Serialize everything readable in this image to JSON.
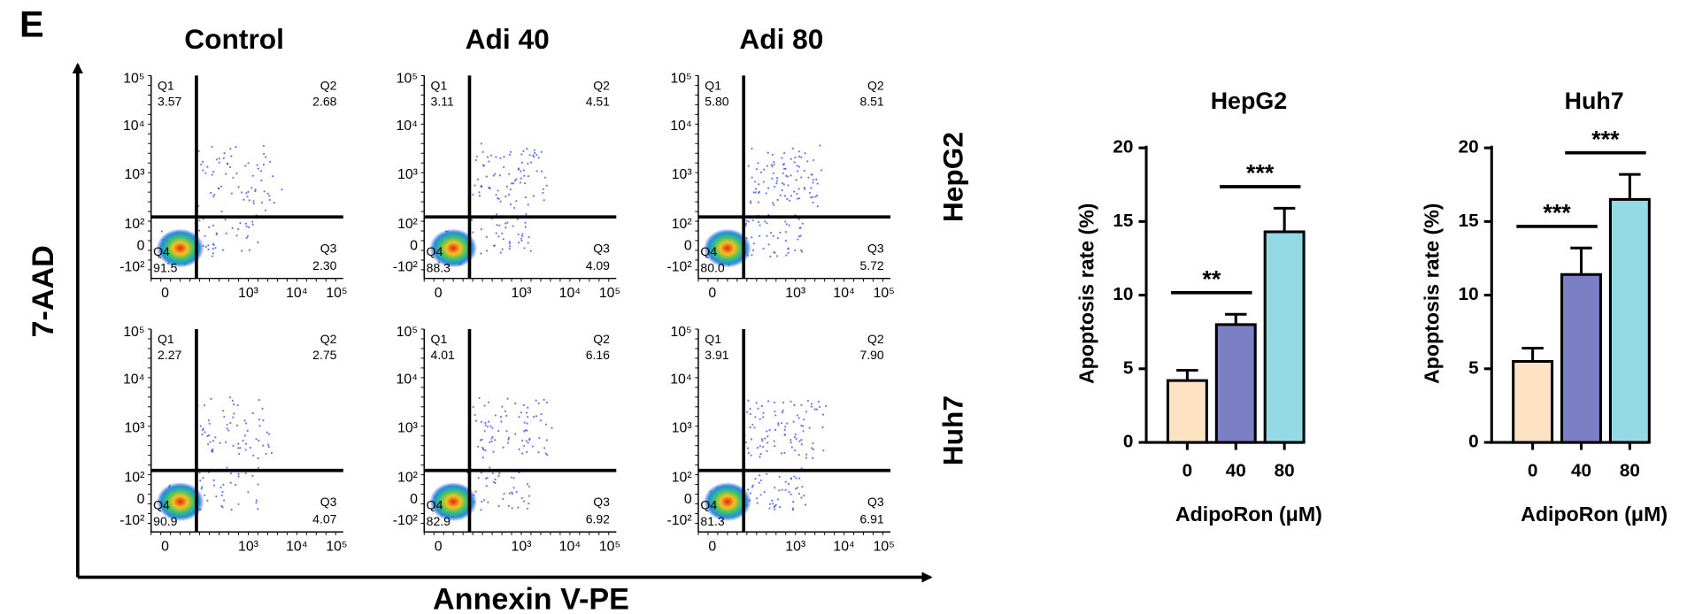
{
  "panel_label": "E",
  "flow": {
    "columns": [
      "Control",
      "Adi 40",
      "Adi 80"
    ],
    "rows": [
      "HepG2",
      "Huh7"
    ],
    "y_label": "7-AAD",
    "x_label": "Annexin V-PE",
    "quadrant_labels": [
      "Q1",
      "Q2",
      "Q3",
      "Q4"
    ],
    "y_ticks": [
      "10⁵",
      "10⁴",
      "10³",
      "10²",
      "0",
      "-10²"
    ],
    "x_ticks": [
      "0",
      "10³",
      "10⁴",
      "10⁵"
    ],
    "plots": [
      [
        [
          "3.57",
          "2.68",
          "2.30",
          "91.5"
        ],
        [
          "3.11",
          "4.51",
          "4.09",
          "88.3"
        ],
        [
          "5.80",
          "8.51",
          "5.72",
          "80.0"
        ]
      ],
      [
        [
          "2.27",
          "2.75",
          "4.07",
          "90.9"
        ],
        [
          "4.01",
          "6.16",
          "6.92",
          "82.9"
        ],
        [
          "3.91",
          "7.90",
          "6.91",
          "81.3"
        ]
      ]
    ]
  },
  "chart_data": [
    {
      "type": "bar",
      "title": "HepG2",
      "x_label": "AdipoRon (μM)",
      "y_label": "Apoptosis rate (%)",
      "categories": [
        "0",
        "40",
        "80"
      ],
      "values": [
        4.2,
        8.0,
        14.3
      ],
      "errors": [
        0.7,
        0.7,
        1.6
      ],
      "colors": [
        "#fde3c4",
        "#7b7fc4",
        "#94d9e4"
      ],
      "ylim": [
        0,
        20
      ],
      "yticks": [
        0,
        5,
        10,
        15,
        20
      ],
      "significance": [
        "**",
        "***"
      ]
    },
    {
      "type": "bar",
      "title": "Huh7",
      "x_label": "AdipoRon (μM)",
      "y_label": "Apoptosis rate (%)",
      "categories": [
        "0",
        "40",
        "80"
      ],
      "values": [
        5.5,
        11.4,
        16.5
      ],
      "errors": [
        0.9,
        1.8,
        1.7
      ],
      "colors": [
        "#fde3c4",
        "#7b7fc4",
        "#94d9e4"
      ],
      "ylim": [
        0,
        20
      ],
      "yticks": [
        0,
        5,
        10,
        15,
        20
      ],
      "significance": [
        "***",
        "***"
      ]
    }
  ]
}
